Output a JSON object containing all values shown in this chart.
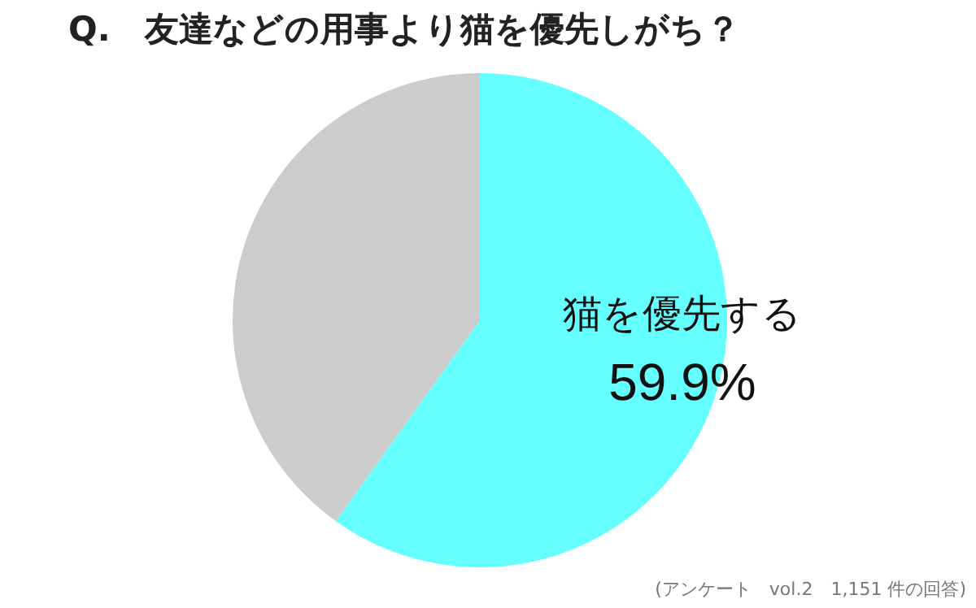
{
  "chart_data": {
    "type": "pie",
    "title": "Q.　友達などの用事より猫を優先しがち？",
    "categories": [
      "猫を優先する",
      null
    ],
    "values": [
      59.9,
      40.1
    ],
    "value_labels": [
      "59.9%",
      null
    ],
    "colors": [
      "#66ffff",
      "#cccccc"
    ],
    "legend": false,
    "annotations": [
      "(アンケート　vol.2　1,151 件の回答)"
    ]
  }
}
